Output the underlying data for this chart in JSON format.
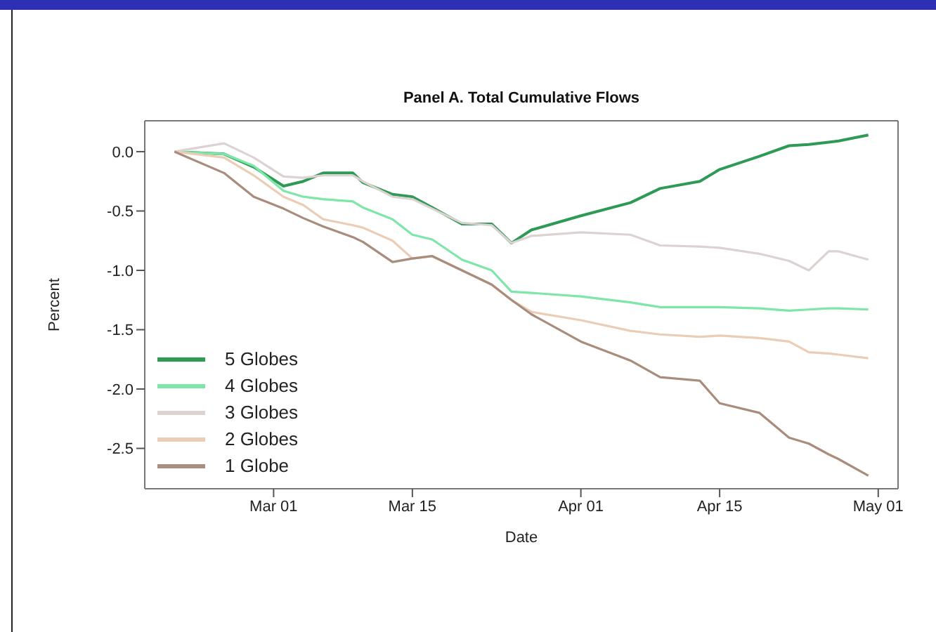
{
  "chart_data": {
    "type": "line",
    "title": "Panel A. Total Cumulative Flows",
    "xlabel": "Date",
    "ylabel": "Percent",
    "x": [
      "--02-19",
      "--02-24",
      "--02-27",
      "--03-02",
      "--03-04",
      "--03-06",
      "--03-09",
      "--03-10",
      "--03-13",
      "--03-15",
      "--03-17",
      "--03-20",
      "--03-23",
      "--03-25",
      "--03-27",
      "--04-01",
      "--04-06",
      "--04-09",
      "--04-13",
      "--04-15",
      "--04-19",
      "--04-22",
      "--04-24",
      "--04-26",
      "--04-27",
      "--04-30"
    ],
    "series": [
      {
        "name": "5 Globes",
        "color": "#2e9a55",
        "values": [
          0,
          -0.02,
          -0.13,
          -0.29,
          -0.25,
          -0.18,
          -0.18,
          -0.26,
          -0.36,
          -0.38,
          -0.47,
          -0.61,
          -0.61,
          -0.77,
          -0.66,
          -0.54,
          -0.43,
          -0.31,
          -0.25,
          -0.15,
          -0.04,
          0.05,
          0.06,
          0.08,
          0.09,
          0.14
        ]
      },
      {
        "name": "4 Globes",
        "color": "#7ee6a8",
        "values": [
          0,
          -0.02,
          -0.12,
          -0.33,
          -0.38,
          -0.4,
          -0.42,
          -0.47,
          -0.57,
          -0.7,
          -0.74,
          -0.91,
          -1.0,
          -1.18,
          -1.19,
          -1.22,
          -1.27,
          -1.31,
          -1.31,
          -1.31,
          -1.32,
          -1.34,
          -1.33,
          -1.32,
          -1.32,
          -1.33
        ]
      },
      {
        "name": "3 Globes",
        "color": "#dcd2d2",
        "values": [
          0,
          0.07,
          -0.05,
          -0.21,
          -0.22,
          -0.2,
          -0.2,
          -0.25,
          -0.38,
          -0.4,
          -0.48,
          -0.6,
          -0.62,
          -0.77,
          -0.71,
          -0.68,
          -0.7,
          -0.79,
          -0.8,
          -0.81,
          -0.86,
          -0.92,
          -1.0,
          -0.84,
          -0.84,
          -0.91
        ]
      },
      {
        "name": "2 Globes",
        "color": "#ebcdb5",
        "values": [
          0,
          -0.05,
          -0.2,
          -0.38,
          -0.45,
          -0.57,
          -0.62,
          -0.64,
          -0.75,
          -0.9,
          -0.88,
          -1.0,
          -1.12,
          -1.25,
          -1.35,
          -1.42,
          -1.51,
          -1.54,
          -1.56,
          -1.55,
          -1.57,
          -1.6,
          -1.69,
          -1.7,
          -1.71,
          -1.74
        ]
      },
      {
        "name": "1 Globe",
        "color": "#a88c7c",
        "values": [
          0,
          -0.18,
          -0.38,
          -0.48,
          -0.56,
          -0.63,
          -0.72,
          -0.76,
          -0.93,
          -0.9,
          -0.88,
          -1.0,
          -1.12,
          -1.25,
          -1.37,
          -1.6,
          -1.76,
          -1.9,
          -1.93,
          -2.12,
          -2.2,
          -2.41,
          -2.46,
          -2.55,
          -2.59,
          -2.73
        ]
      }
    ],
    "xlim": [
      "--02-16",
      "--05-03"
    ],
    "xticks": [
      {
        "value": "--03-01",
        "label": "Mar 01"
      },
      {
        "value": "--03-15",
        "label": "Mar 15"
      },
      {
        "value": "--04-01",
        "label": "Apr 01"
      },
      {
        "value": "--04-15",
        "label": "Apr 15"
      },
      {
        "value": "--05-01",
        "label": "May 01"
      }
    ],
    "ylim": [
      -2.84,
      0.26
    ],
    "yticks": [
      {
        "value": 0,
        "label": "0.0"
      },
      {
        "value": -0.5,
        "label": "-0.5"
      },
      {
        "value": -1,
        "label": "-1.0"
      },
      {
        "value": -1.5,
        "label": "-1.5"
      },
      {
        "value": -2,
        "label": "-2.0"
      },
      {
        "value": -2.5,
        "label": "-2.5"
      }
    ],
    "grid": false,
    "legend": "bottom left",
    "marker": "none",
    "line_style": "solid"
  }
}
